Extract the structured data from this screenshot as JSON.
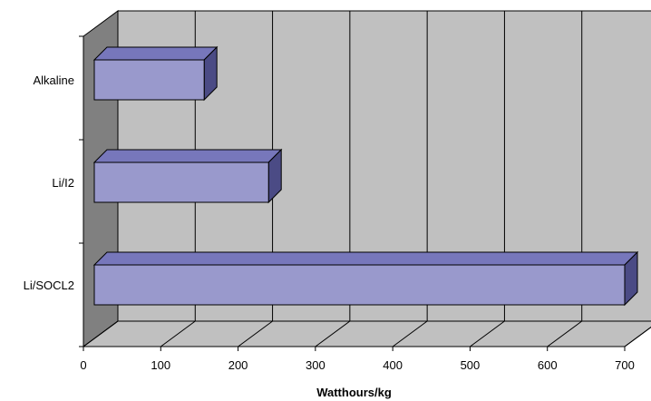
{
  "chart_data": {
    "type": "bar",
    "orientation": "horizontal",
    "three_d": true,
    "title": "",
    "xlabel": "Watthours/kg",
    "ylabel": "",
    "categories": [
      "Alkaline",
      "Li/I2",
      "Li/SOCL2"
    ],
    "values": [
      145,
      230,
      700
    ],
    "xlim": [
      0,
      700
    ],
    "xticks": [
      0,
      100,
      200,
      300,
      400,
      500,
      600,
      700
    ],
    "grid": true,
    "legend": "none",
    "colors": {
      "bar_front": "#9999cc",
      "bar_top": "#7777bb",
      "bar_side": "#4b4b85",
      "bar_edge": "#000000",
      "back_wall": "#c0c0c0",
      "left_wall": "#808080",
      "floor": "#c0c0c0",
      "grid": "#000000"
    }
  }
}
